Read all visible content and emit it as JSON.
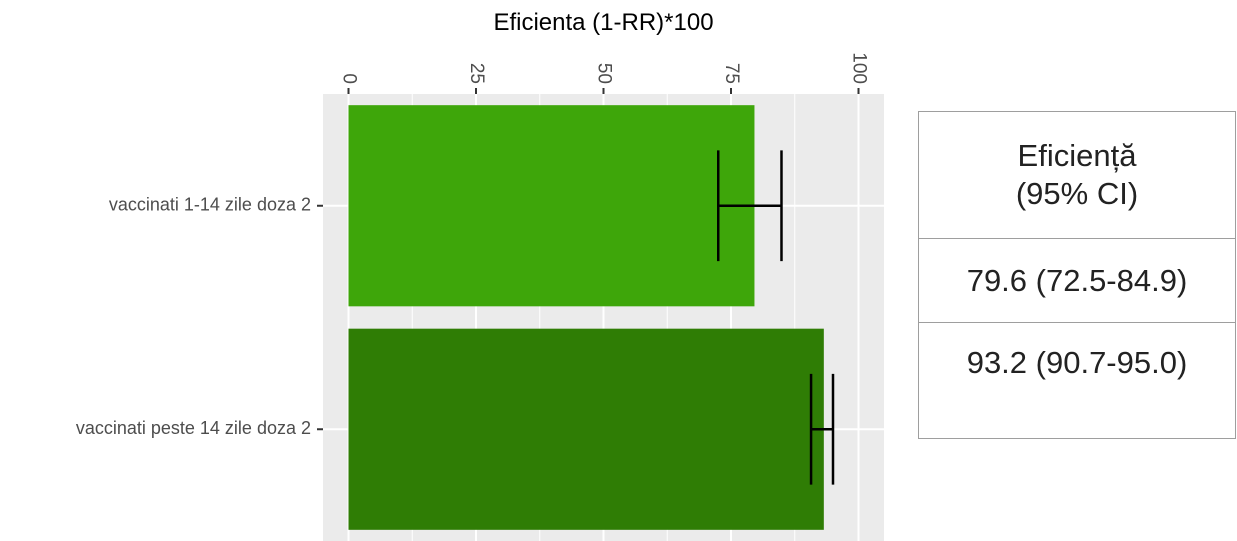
{
  "chart_data": {
    "type": "bar",
    "orientation": "horizontal",
    "xlabel": "Eficienta (1-RR)*100",
    "ylabel": "",
    "title": "",
    "xlim": [
      -5,
      105
    ],
    "ticks": [
      0,
      25,
      50,
      75,
      100
    ],
    "tick_labels": [
      "0",
      "25",
      "50",
      "75",
      "100"
    ],
    "grid": true,
    "categories": [
      "vaccinati 1-14 zile doza 2",
      "vaccinati peste 14 zile doza 2"
    ],
    "values": [
      79.6,
      93.2
    ],
    "ci_low": [
      72.5,
      90.7
    ],
    "ci_high": [
      84.9,
      95.0
    ],
    "colors": [
      "#3ea60a",
      "#2f7d05"
    ]
  },
  "table": {
    "header_line1": "Eficiență",
    "header_line2": "(95% CI)",
    "rows": [
      "79.6 (72.5-84.9)",
      "93.2 (90.7-95.0)"
    ]
  }
}
